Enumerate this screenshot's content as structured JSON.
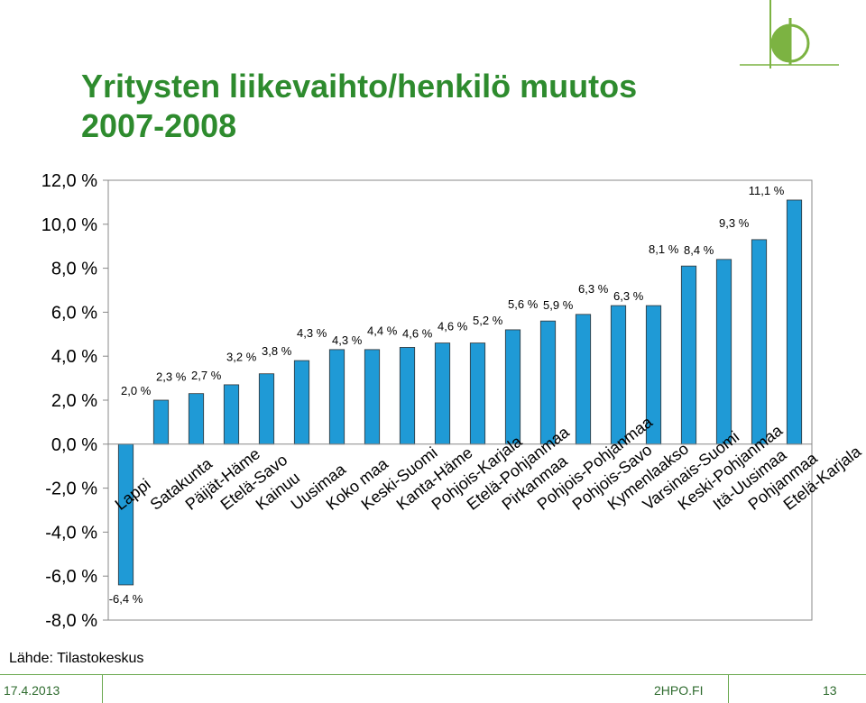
{
  "slide": {
    "title": "Yritysten liikevaihto/henkilö muutos\n2007-2008",
    "source": "Lähde: Tilastokeskus",
    "date": "17.4.2013",
    "site": "2HPO.FI",
    "page": "13"
  },
  "colors": {
    "bar": "#1f9ad6",
    "title": "#2e8b2e",
    "grid": "#888888"
  },
  "chart_data": {
    "type": "bar",
    "title": "Yritysten liikevaihto/henkilö muutos 2007-2008",
    "xlabel": "",
    "ylabel": "",
    "ylim": [
      -8,
      12
    ],
    "yticks": [
      "12,0 %",
      "10,0 %",
      "8,0 %",
      "6,0 %",
      "4,0 %",
      "2,0 %",
      "0,0 %",
      "-2,0 %",
      "-4,0 %",
      "-6,0 %",
      "-8,0 %"
    ],
    "grid": true,
    "categories": [
      "Lappi",
      "Satakunta",
      "Päijät-Häme",
      "Etelä-Savo",
      "Kainuu",
      "Uusimaa",
      "Koko maa",
      "Keski-Suomi",
      "Kanta-Häme",
      "Pohjois-Karjala",
      "Etelä-Pohjanmaa",
      "Pirkanmaa",
      "Pohjois-Pohjanmaa",
      "Pohjois-Savo",
      "Kymenlaakso",
      "Varsinais-Suomi",
      "Keski-Pohjanmaa",
      "Itä-Uusimaa",
      "Pohjanmaa",
      "Etelä-Karjala"
    ],
    "values": [
      -6.4,
      2.0,
      2.3,
      2.7,
      3.2,
      3.8,
      4.3,
      4.3,
      4.4,
      4.6,
      4.6,
      5.2,
      5.6,
      5.9,
      6.3,
      6.3,
      8.1,
      8.4,
      9.3,
      11.1
    ],
    "labels": [
      "-6,4 %",
      "2,0 %",
      "2,3 %",
      "2,7 %",
      "3,2 %",
      "3,8 %",
      "4,3 %",
      "4,3 %",
      "4,4 %",
      "4,6 %",
      "4,6 %",
      "5,2 %",
      "5,6 %",
      "5,9 %",
      "6,3 %",
      "6,3 %",
      "8,1 %",
      "8,4 %",
      "9,3 %",
      "11,1 %"
    ]
  }
}
